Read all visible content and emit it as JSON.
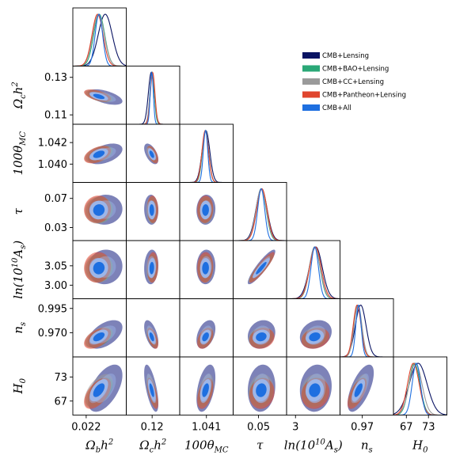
{
  "chart_data": {
    "type": "triangle-corner-plot",
    "legend_position": "top-right",
    "parameters": [
      {
        "label": "Ωbh²",
        "display": [
          "Ω",
          "b",
          "h",
          "2"
        ],
        "mean": 0.02237,
        "sigma": 0.00015,
        "range": [
          0.0216,
          0.0232
        ],
        "ticks": [
          0.022
        ],
        "tick_labels": [
          "0.022"
        ]
      },
      {
        "label": "Ωch²",
        "display": [
          "Ω",
          "c",
          "h",
          "2"
        ],
        "mean": 0.12,
        "sigma": 0.0012,
        "range": [
          0.105,
          0.136
        ],
        "ticks": [
          0.11,
          0.13
        ],
        "tick_labels": [
          "0.11",
          "0.13"
        ],
        "x_tick_labels": [
          "0.12"
        ],
        "x_ticks": [
          0.12
        ]
      },
      {
        "label": "100θMC",
        "display": [
          "100θ",
          "MC",
          "",
          ""
        ],
        "mean": 1.0409,
        "sigma": 0.0003,
        "range": [
          1.0383,
          1.0437
        ],
        "ticks": [
          1.04,
          1.042
        ],
        "tick_labels": [
          "1.040",
          "1.042"
        ],
        "x_tick_labels": [
          "1.041"
        ],
        "x_ticks": [
          1.041
        ]
      },
      {
        "label": "τ",
        "display": [
          "τ",
          "",
          "",
          ""
        ],
        "mean": 0.054,
        "sigma": 0.007,
        "range": [
          0.012,
          0.092
        ],
        "ticks": [
          0.03,
          0.07
        ],
        "tick_labels": [
          "0.03",
          "0.07"
        ],
        "x_tick_labels": [
          "0.05"
        ],
        "x_ticks": [
          0.05
        ]
      },
      {
        "label": "ln(10¹⁰As)",
        "display": [
          "ln(10",
          "",
          "10",
          "As)"
        ],
        "mean": 3.044,
        "sigma": 0.014,
        "range": [
          2.965,
          3.115
        ],
        "ticks": [
          3.0,
          3.05
        ],
        "tick_labels": [
          "3.00",
          "3.05"
        ],
        "x_tick_labels": [
          "3"
        ],
        "x_ticks": [
          2.99
        ]
      },
      {
        "label": "ns",
        "display": [
          "n",
          "s",
          "",
          ""
        ],
        "mean": 0.9652,
        "sigma": 0.004,
        "range": [
          0.945,
          1.005
        ],
        "ticks": [
          0.97,
          0.995
        ],
        "tick_labels": [
          "0.970",
          "0.995"
        ],
        "x_tick_labels": [
          "0.97"
        ],
        "x_ticks": [
          0.97
        ]
      },
      {
        "label": "H0",
        "display": [
          "H",
          "0",
          "",
          ""
        ],
        "mean": 69.5,
        "sigma": 1.5,
        "range": [
          63.5,
          78.0
        ],
        "ticks": [
          67,
          73
        ],
        "tick_labels": [
          "67",
          "73"
        ],
        "x_tick_labels": [
          "67",
          "73"
        ],
        "x_ticks": [
          67,
          73
        ]
      }
    ],
    "correlations": {
      "1-0": -0.55,
      "2-0": 0.45,
      "2-1": -0.55,
      "3-0": 0.05,
      "3-1": -0.05,
      "3-2": 0.05,
      "4-0": 0.05,
      "4-1": 0.1,
      "4-2": 0.05,
      "4-3": 0.9,
      "5-0": 0.5,
      "5-1": -0.55,
      "5-2": 0.4,
      "5-3": 0.15,
      "5-4": 0.2,
      "6-0": 0.55,
      "6-1": -0.65,
      "6-2": 0.45,
      "6-3": 0.1,
      "6-4": 0.1,
      "6-5": 0.65
    },
    "series": [
      {
        "name": "CMB+Lensing",
        "color": "#0a1463",
        "shift": [
          0.0002,
          -0.0005,
          5e-05,
          0.0005,
          0.003,
          0.003,
          0.7
        ],
        "width": [
          1.4,
          1.4,
          1.3,
          1.2,
          1.3,
          1.5,
          1.6
        ]
      },
      {
        "name": "CMB+BAO+Lensing",
        "color": "#2aa877",
        "shift": [
          2e-05,
          0.0,
          1e-05,
          0.0,
          0.0,
          -0.0005,
          -0.3
        ],
        "width": [
          1.1,
          1.05,
          1.05,
          1.05,
          1.05,
          1.05,
          1.0
        ]
      },
      {
        "name": "CMB+CC+Lensing",
        "color": "#9a9a9a",
        "shift": [
          0.0,
          0.0001,
          0.0,
          0.0,
          0.0,
          0.0,
          0.0
        ],
        "width": [
          1.15,
          1.15,
          1.1,
          1.1,
          1.1,
          1.1,
          1.15
        ]
      },
      {
        "name": "CMB+Pantheon+Lensing",
        "color": "#e0452e",
        "shift": [
          -3e-05,
          0.0003,
          -2e-05,
          0.001,
          0.002,
          -0.001,
          -0.6
        ],
        "width": [
          1.1,
          1.1,
          1.1,
          1.1,
          1.15,
          1.1,
          1.05
        ]
      },
      {
        "name": "CMB+All",
        "color": "#1e6fe0",
        "shift": [
          1e-05,
          -0.0002,
          1e-05,
          0.0,
          0.0,
          0.0005,
          0.2
        ],
        "width": [
          0.75,
          0.75,
          0.75,
          0.75,
          0.75,
          0.75,
          0.75
        ]
      }
    ],
    "filled_contours": {
      "outer_fill": "#6f74b0",
      "inner_fill": "#9db6e8",
      "core_fill": "#1e6fe0"
    }
  }
}
